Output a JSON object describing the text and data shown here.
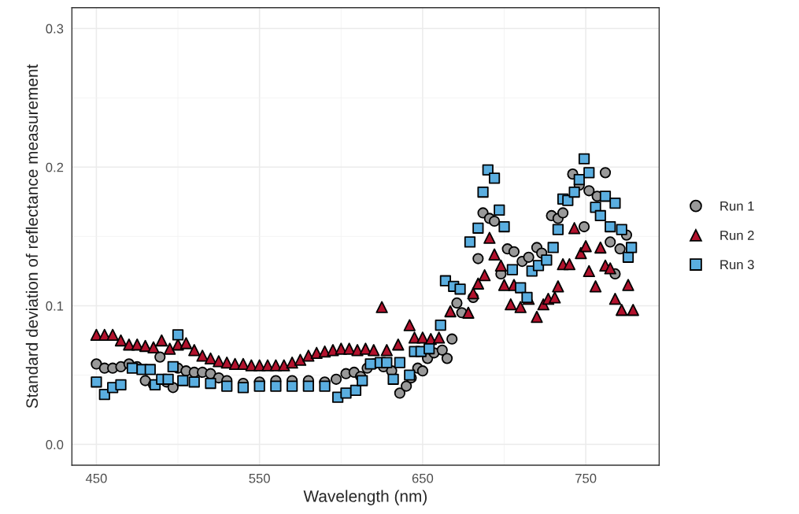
{
  "chart_data": {
    "type": "scatter",
    "xlabel": "Wavelength (nm)",
    "ylabel": "Standard deviation of reflectance measurement",
    "xlim": [
      435,
      795
    ],
    "ylim": [
      -0.015,
      0.315
    ],
    "xticks": [
      450,
      550,
      650,
      750
    ],
    "yticks": [
      {
        "value": 0,
        "label": "0.0"
      },
      0.1,
      0.2,
      0.3
    ],
    "grid": true,
    "legend": "right",
    "series": [
      {
        "name": "Run 1",
        "color": "#999999",
        "marker": "circle",
        "x": [
          450,
          455,
          460,
          465,
          470,
          475,
          480,
          485,
          489,
          493,
          497,
          500,
          505,
          510,
          515,
          520,
          525,
          530,
          540,
          550,
          560,
          570,
          580,
          590,
          597,
          603,
          608,
          612,
          616,
          620,
          626,
          631,
          636,
          640,
          643,
          647,
          650,
          653,
          657,
          662,
          665,
          668,
          671,
          674,
          681,
          684,
          687,
          691,
          694,
          698,
          702,
          706,
          711,
          715,
          720,
          723,
          729,
          733,
          736,
          742,
          746,
          749,
          752,
          757,
          762,
          765,
          768,
          771,
          775
        ],
        "values": [
          0.058,
          0.055,
          0.055,
          0.056,
          0.058,
          0.056,
          0.046,
          0.043,
          0.063,
          0.045,
          0.041,
          0.055,
          0.053,
          0.052,
          0.052,
          0.051,
          0.048,
          0.046,
          0.044,
          0.045,
          0.046,
          0.046,
          0.046,
          0.045,
          0.047,
          0.051,
          0.052,
          0.049,
          0.055,
          0.058,
          0.056,
          0.053,
          0.037,
          0.042,
          0.048,
          0.055,
          0.053,
          0.062,
          0.066,
          0.068,
          0.062,
          0.076,
          0.102,
          0.095,
          0.106,
          0.134,
          0.167,
          0.163,
          0.161,
          0.123,
          0.141,
          0.139,
          0.132,
          0.135,
          0.142,
          0.138,
          0.165,
          0.163,
          0.167,
          0.195,
          0.187,
          0.157,
          0.183,
          0.179,
          0.196,
          0.146,
          0.123,
          0.141,
          0.151
        ]
      },
      {
        "name": "Run 2",
        "color": "#b2122d",
        "marker": "triangle",
        "x": [
          450,
          455,
          460,
          465,
          470,
          475,
          480,
          485,
          490,
          495,
          500,
          505,
          510,
          515,
          520,
          525,
          530,
          535,
          540,
          545,
          550,
          555,
          560,
          565,
          570,
          575,
          580,
          585,
          590,
          595,
          600,
          605,
          610,
          615,
          620,
          625,
          628,
          635,
          642,
          645,
          650,
          655,
          660,
          667,
          678,
          681,
          684,
          688,
          691,
          694,
          698,
          700,
          704,
          706,
          710,
          715,
          720,
          724,
          727,
          731,
          733,
          736,
          740,
          743,
          747,
          750,
          752,
          756,
          759,
          762,
          765,
          768,
          772,
          776,
          779
        ],
        "values": [
          0.079,
          0.079,
          0.079,
          0.075,
          0.072,
          0.072,
          0.071,
          0.07,
          0.075,
          0.069,
          0.072,
          0.073,
          0.068,
          0.064,
          0.062,
          0.06,
          0.059,
          0.058,
          0.058,
          0.057,
          0.057,
          0.057,
          0.057,
          0.057,
          0.059,
          0.061,
          0.064,
          0.066,
          0.067,
          0.068,
          0.069,
          0.069,
          0.068,
          0.069,
          0.068,
          0.099,
          0.068,
          0.072,
          0.086,
          0.077,
          0.077,
          0.076,
          0.077,
          0.096,
          0.095,
          0.109,
          0.116,
          0.122,
          0.149,
          0.137,
          0.129,
          0.115,
          0.101,
          0.115,
          0.099,
          0.105,
          0.092,
          0.101,
          0.105,
          0.106,
          0.114,
          0.13,
          0.13,
          0.156,
          0.138,
          0.143,
          0.125,
          0.114,
          0.142,
          0.129,
          0.127,
          0.105,
          0.097,
          0.115,
          0.097
        ]
      },
      {
        "name": "Run 3",
        "color": "#5aaee0",
        "marker": "square",
        "x": [
          450,
          455,
          460,
          465,
          472,
          478,
          483,
          486,
          490,
          494,
          497,
          500,
          503,
          510,
          520,
          530,
          540,
          550,
          560,
          570,
          580,
          590,
          598,
          603,
          609,
          613,
          618,
          624,
          628,
          632,
          636,
          642,
          645,
          649,
          654,
          661,
          664,
          669,
          673,
          679,
          684,
          687,
          690,
          694,
          697,
          700,
          705,
          710,
          714,
          717,
          721,
          726,
          730,
          733,
          736,
          739,
          743,
          746,
          749,
          752,
          756,
          759,
          762,
          765,
          768,
          772,
          776,
          778
        ],
        "values": [
          0.045,
          0.036,
          0.041,
          0.043,
          0.055,
          0.054,
          0.054,
          0.043,
          0.047,
          0.047,
          0.056,
          0.079,
          0.046,
          0.045,
          0.044,
          0.042,
          0.041,
          0.042,
          0.042,
          0.042,
          0.042,
          0.042,
          0.034,
          0.037,
          0.039,
          0.046,
          0.058,
          0.059,
          0.059,
          0.047,
          0.059,
          0.05,
          0.067,
          0.067,
          0.069,
          0.086,
          0.118,
          0.114,
          0.112,
          0.146,
          0.156,
          0.182,
          0.198,
          0.192,
          0.169,
          0.157,
          0.126,
          0.113,
          0.106,
          0.125,
          0.129,
          0.133,
          0.142,
          0.155,
          0.177,
          0.176,
          0.182,
          0.191,
          0.206,
          0.196,
          0.171,
          0.165,
          0.179,
          0.157,
          0.174,
          0.155,
          0.135,
          0.142
        ]
      }
    ]
  }
}
